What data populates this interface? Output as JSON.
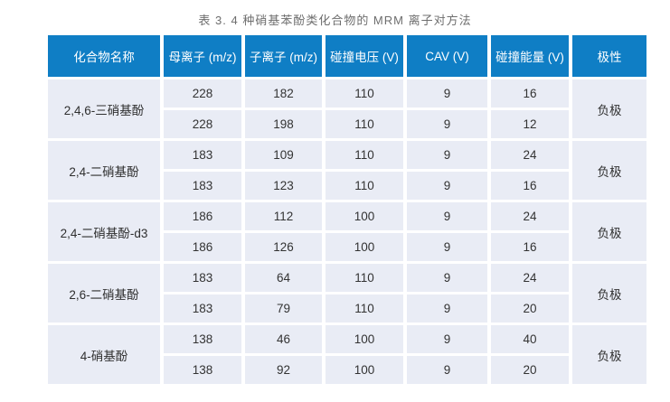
{
  "page": {
    "title": "表 3. 4 种硝基苯酚类化合物的 MRM 离子对方法"
  },
  "table": {
    "headers": [
      "化合物名称",
      "母离子 (m/z)",
      "子离子 (m/z)",
      "碰撞电压 (V)",
      "CAV (V)",
      "碰撞能量 (V)",
      "极性"
    ],
    "groups": [
      {
        "compound": "2,4,6-三硝基酚",
        "polarity": "负极",
        "rows": [
          [
            "228",
            "182",
            "110",
            "9",
            "16"
          ],
          [
            "228",
            "198",
            "110",
            "9",
            "12"
          ]
        ]
      },
      {
        "compound": "2,4-二硝基酚",
        "polarity": "负极",
        "rows": [
          [
            "183",
            "109",
            "110",
            "9",
            "24"
          ],
          [
            "183",
            "123",
            "110",
            "9",
            "16"
          ]
        ]
      },
      {
        "compound": "2,4-二硝基酚-d3",
        "polarity": "负极",
        "rows": [
          [
            "186",
            "112",
            "100",
            "9",
            "24"
          ],
          [
            "186",
            "126",
            "100",
            "9",
            "16"
          ]
        ]
      },
      {
        "compound": "2,6-二硝基酚",
        "polarity": "负极",
        "rows": [
          [
            "183",
            "64",
            "110",
            "9",
            "24"
          ],
          [
            "183",
            "79",
            "110",
            "9",
            "20"
          ]
        ]
      },
      {
        "compound": "4-硝基酚",
        "polarity": "负极",
        "rows": [
          [
            "138",
            "46",
            "100",
            "9",
            "40"
          ],
          [
            "138",
            "92",
            "100",
            "9",
            "20"
          ]
        ]
      }
    ],
    "colors": {
      "header_bg": "#0F7EC5",
      "header_text": "#FFFFFF",
      "cell_bg": "#E9ECF5",
      "cell_text": "#333333",
      "grid": "#FFFFFF"
    }
  }
}
